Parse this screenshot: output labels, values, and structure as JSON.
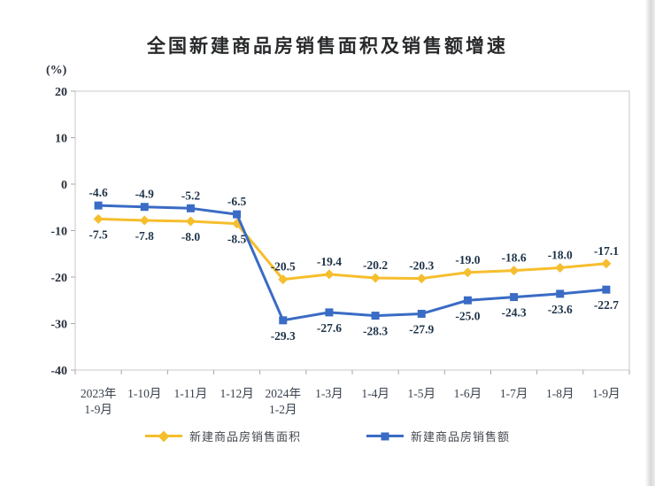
{
  "title": "全国新建商品房销售面积及销售额增速",
  "chart_data": {
    "type": "line",
    "title": "全国新建商品房销售面积及销售额增速",
    "xlabel": "",
    "ylabel": "(%)",
    "ylim": [
      -40,
      20
    ],
    "yticks": [
      20,
      10,
      0,
      -10,
      -20,
      -30,
      -40
    ],
    "grid": false,
    "legend_position": "bottom",
    "categories": [
      "2023年\n1-9月",
      "1-10月",
      "1-11月",
      "1-12月",
      "2024年\n1-2月",
      "1-3月",
      "1-4月",
      "1-5月",
      "1-6月",
      "1-7月",
      "1-8月",
      "1-9月"
    ],
    "series": [
      {
        "name": "新建商品房销售面积",
        "color": "#F6BE2D",
        "marker": "diamond",
        "values": [
          -7.5,
          -7.8,
          -8.0,
          -8.5,
          -20.5,
          -19.4,
          -20.2,
          -20.3,
          -19.0,
          -18.6,
          -18.0,
          -17.1
        ]
      },
      {
        "name": "新建商品房销售额",
        "color": "#3A6BC5",
        "marker": "square",
        "values": [
          -4.6,
          -4.9,
          -5.2,
          -6.5,
          -29.3,
          -27.6,
          -28.3,
          -27.9,
          -25.0,
          -24.3,
          -23.6,
          -22.7
        ]
      }
    ]
  }
}
